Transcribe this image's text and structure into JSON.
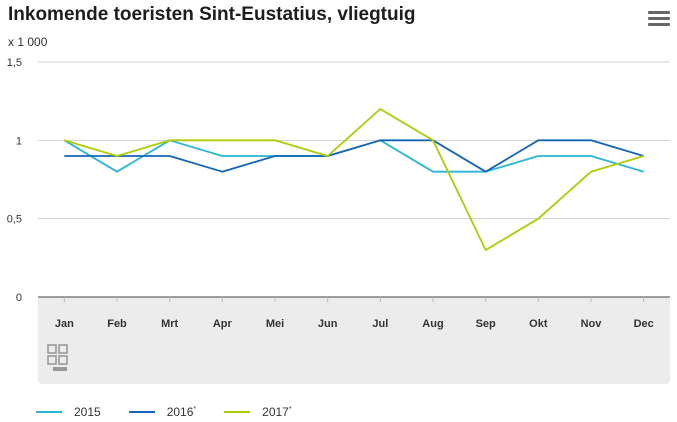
{
  "title": "Inkomende toeristen Sint-Eustatius, vliegtuig",
  "menu_icon": "hamburger-menu-icon",
  "logo_icon": "cbs-logo-icon",
  "chart_data": {
    "type": "line",
    "title": "Inkomende toeristen Sint-Eustatius, vliegtuig",
    "unit_label": "x 1 000",
    "categories": [
      "Jan",
      "Feb",
      "Mrt",
      "Apr",
      "Mei",
      "Jun",
      "Jul",
      "Aug",
      "Sep",
      "Okt",
      "Nov",
      "Dec"
    ],
    "y_ticks": [
      "0",
      "0,5",
      "1",
      "1,5"
    ],
    "ylim": [
      0,
      1.5
    ],
    "grid": "horizontal",
    "legend_position": "bottom-left",
    "series": [
      {
        "name": "2015",
        "marker": "",
        "color": "#29b6d2",
        "values": [
          1.0,
          0.8,
          1.0,
          0.9,
          0.9,
          0.9,
          1.0,
          0.8,
          0.8,
          0.9,
          0.9,
          0.8
        ]
      },
      {
        "name": "2016",
        "marker": "*",
        "color": "#1565b5",
        "values": [
          0.9,
          0.9,
          0.9,
          0.8,
          0.9,
          0.9,
          1.0,
          1.0,
          0.8,
          1.0,
          1.0,
          0.9
        ]
      },
      {
        "name": "2017",
        "marker": "*",
        "color": "#afcb05",
        "values": [
          1.0,
          0.9,
          1.0,
          1.0,
          1.0,
          0.9,
          1.2,
          1.0,
          0.3,
          0.5,
          0.8,
          0.9
        ]
      }
    ]
  }
}
